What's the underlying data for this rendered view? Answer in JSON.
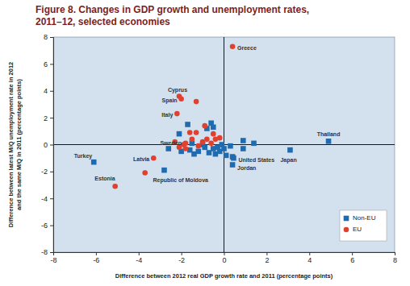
{
  "chart_data": {
    "type": "scatter",
    "title": [
      "Figure 8. Changes in GDP growth and unemployment rates,",
      "2011–12, selected economies"
    ],
    "xlabel": "Difference between 2012 real GDP growth rate and 2011 (percentage points)",
    "ylabel": [
      "Difference between latest M/Q unemployment rate in 2012",
      "and the same M/Q in 2011 (percentage points)"
    ],
    "xlim": [
      -8,
      8
    ],
    "ylim": [
      -8,
      8
    ],
    "xticks": [
      -8,
      -6,
      -4,
      -2,
      0,
      2,
      4,
      6,
      8
    ],
    "yticks": [
      -8,
      -6,
      -4,
      -2,
      0,
      2,
      4,
      6,
      8
    ],
    "grid": false,
    "legend": "lower right",
    "series": [
      {
        "name": "Non-EU",
        "color": "#1f6bb0",
        "marker": "square",
        "x": [
          -6.1,
          -2.8,
          0.45,
          0.4,
          3.1,
          4.9,
          -2.6,
          -2.1,
          -1.7,
          -1.6,
          -1.4,
          -1.2,
          -1.0,
          -0.9,
          -0.8,
          -0.6,
          -0.5,
          -0.5,
          -0.4,
          -0.3,
          -0.2,
          -0.1,
          0.0,
          0.1,
          0.3,
          0.4,
          0.9,
          0.9,
          1.4,
          -2.0,
          -1.5,
          -0.7
        ],
        "values": [
          -1.3,
          -1.9,
          -1.0,
          -1.5,
          -0.4,
          0.25,
          -0.3,
          0.8,
          1.5,
          -0.4,
          -0.7,
          -0.5,
          0.0,
          -0.2,
          1.2,
          1.6,
          1.3,
          -0.3,
          -0.7,
          -0.2,
          -0.5,
          0.0,
          -0.3,
          -0.8,
          -0.1,
          -0.9,
          -0.3,
          0.3,
          0.1,
          -0.5,
          0.1,
          -0.6
        ],
        "labels": [
          "Turkey",
          "Republic of Moldova",
          "United States",
          "Jordan",
          "Japan",
          "Thailand",
          null,
          null,
          null,
          null,
          null,
          null,
          null,
          null,
          null,
          null,
          null,
          null,
          null,
          null,
          null,
          null,
          null,
          null,
          null,
          null,
          null,
          null,
          null,
          null,
          null,
          null
        ]
      },
      {
        "name": "EU",
        "color": "#e2402f",
        "marker": "circle",
        "x": [
          0.4,
          -2.1,
          -2.0,
          -2.2,
          -1.8,
          -3.3,
          -5.1,
          -1.3,
          -3.7,
          -2.3,
          -2.1,
          -1.9,
          -1.5,
          -1.3,
          -1.6,
          -1.2,
          -1.0,
          -0.8,
          -0.6,
          -0.4,
          -0.2,
          -0.5,
          -0.9,
          -1.8
        ],
        "values": [
          7.3,
          3.6,
          3.4,
          2.3,
          0.1,
          -1.0,
          -3.1,
          3.2,
          -2.1,
          0.2,
          -0.2,
          0.0,
          0.4,
          0.9,
          0.9,
          -0.1,
          0.2,
          0.4,
          0.1,
          0.4,
          0.5,
          0.8,
          1.4,
          -0.3
        ],
        "labels": [
          "Greece",
          "Cyprus",
          "Spain",
          "Italy",
          "Sweden",
          "Latvia",
          "Estonia",
          null,
          null,
          null,
          null,
          null,
          null,
          null,
          null,
          null,
          null,
          null,
          null,
          null,
          null,
          null,
          null,
          null
        ]
      }
    ]
  }
}
